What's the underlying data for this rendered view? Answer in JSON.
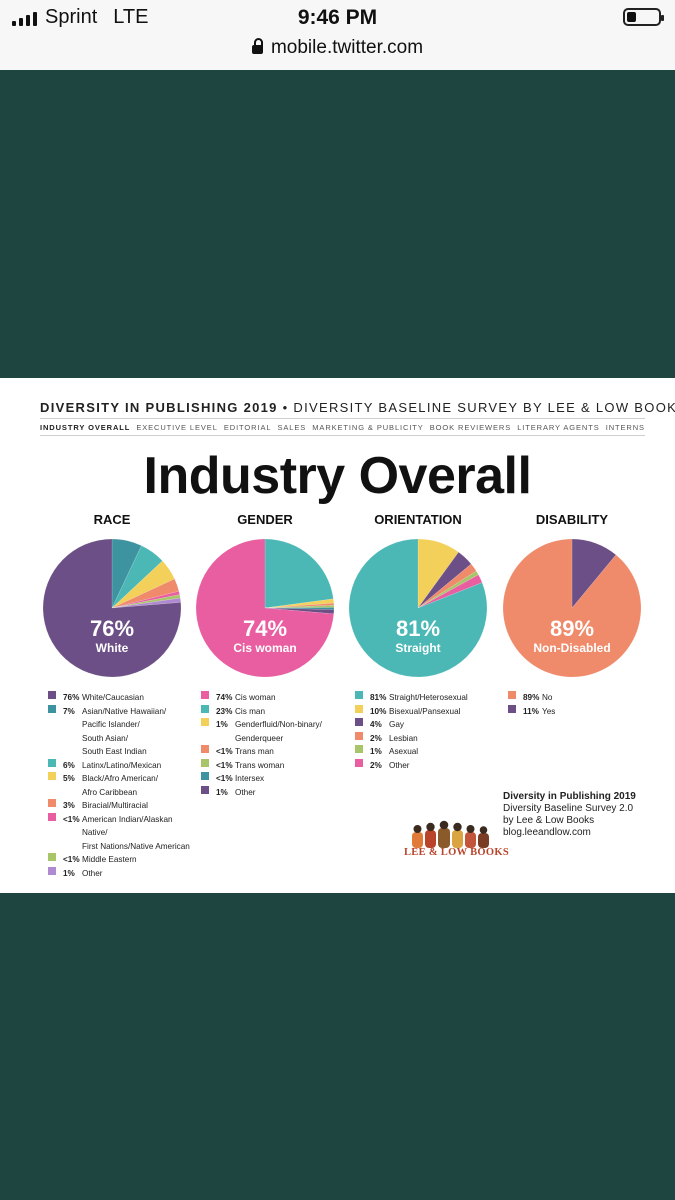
{
  "status_bar": {
    "carrier": "Sprint",
    "network": "LTE",
    "time": "9:46 PM",
    "url": "mobile.twitter.com"
  },
  "colors": {
    "purple": "#6b4f86",
    "teal": "#3d93a0",
    "cyan": "#4bb8b6",
    "yellow": "#f2d05a",
    "orange": "#ef8a6a",
    "pink": "#e85ea1",
    "lime": "#a8c56a",
    "lavender": "#b08ad0",
    "dark_teal": "#1e4540"
  },
  "header": {
    "title_bold": "DIVERSITY IN PUBLISHING 2019",
    "title_rest": "• DIVERSITY BASELINE SURVEY BY LEE & LOW BOOKS",
    "nav": [
      "INDUSTRY OVERALL",
      "EXECUTIVE LEVEL",
      "EDITORIAL",
      "SALES",
      "MARKETING & PUBLICITY",
      "BOOK REVIEWERS",
      "LITERARY AGENTS",
      "INTERNS"
    ]
  },
  "page_title": "Industry Overall",
  "chart_data": [
    {
      "type": "pie",
      "title": "RACE",
      "center_value": "76%",
      "center_label": "White",
      "slices": [
        {
          "pct": "76%",
          "label": "White/Caucasian",
          "value": 76,
          "color": "#6b4f86"
        },
        {
          "pct": "7%",
          "label": "Asian/Native Hawaiian/ Pacific Islander/ South Asian/ South East Indian",
          "value": 7,
          "color": "#3d93a0"
        },
        {
          "pct": "6%",
          "label": "Latinx/Latino/Mexican",
          "value": 6,
          "color": "#4bb8b6"
        },
        {
          "pct": "5%",
          "label": "Black/Afro American/ Afro Caribbean",
          "value": 5,
          "color": "#f2d05a"
        },
        {
          "pct": "3%",
          "label": "Biracial/Multiracial",
          "value": 3,
          "color": "#ef8a6a"
        },
        {
          "pct": "<1%",
          "label": "American Indian/Alaskan Native/ First Nations/Native American",
          "value": 0.8,
          "color": "#e85ea1"
        },
        {
          "pct": "<1%",
          "label": "Middle Eastern",
          "value": 0.8,
          "color": "#a8c56a"
        },
        {
          "pct": "1%",
          "label": "Other",
          "value": 1,
          "color": "#b08ad0"
        }
      ]
    },
    {
      "type": "pie",
      "title": "GENDER",
      "center_value": "74%",
      "center_label": "Cis woman",
      "slices": [
        {
          "pct": "74%",
          "label": "Cis woman",
          "value": 74,
          "color": "#e85ea1"
        },
        {
          "pct": "23%",
          "label": "Cis man",
          "value": 23,
          "color": "#4bb8b6"
        },
        {
          "pct": "1%",
          "label": "Genderfluid/Non-binary/ Genderqueer",
          "value": 1,
          "color": "#f2d05a"
        },
        {
          "pct": "<1%",
          "label": "Trans man",
          "value": 0.5,
          "color": "#ef8a6a"
        },
        {
          "pct": "<1%",
          "label": "Trans woman",
          "value": 0.5,
          "color": "#a8c56a"
        },
        {
          "pct": "<1%",
          "label": "Intersex",
          "value": 0.5,
          "color": "#3d93a0"
        },
        {
          "pct": "1%",
          "label": "Other",
          "value": 1,
          "color": "#6b4f86"
        }
      ]
    },
    {
      "type": "pie",
      "title": "ORIENTATION",
      "center_value": "81%",
      "center_label": "Straight",
      "slices": [
        {
          "pct": "81%",
          "label": "Straight/Heterosexual",
          "value": 81,
          "color": "#4bb8b6"
        },
        {
          "pct": "10%",
          "label": "Bisexual/Pansexual",
          "value": 10,
          "color": "#f2d05a"
        },
        {
          "pct": "4%",
          "label": "Gay",
          "value": 4,
          "color": "#6b4f86"
        },
        {
          "pct": "2%",
          "label": "Lesbian",
          "value": 2,
          "color": "#ef8a6a"
        },
        {
          "pct": "1%",
          "label": "Asexual",
          "value": 1,
          "color": "#a8c56a"
        },
        {
          "pct": "2%",
          "label": "Other",
          "value": 2,
          "color": "#e85ea1"
        }
      ]
    },
    {
      "type": "pie",
      "title": "DISABILITY",
      "center_value": "89%",
      "center_label": "Non-Disabled",
      "slices": [
        {
          "pct": "89%",
          "label": "No",
          "value": 89,
          "color": "#ef8a6a"
        },
        {
          "pct": "11%",
          "label": "Yes",
          "value": 11,
          "color": "#6b4f86"
        }
      ]
    }
  ],
  "credit": {
    "title": "Diversity in Publishing 2019",
    "line1": "Diversity Baseline Survey 2.0",
    "line2": "by Lee & Low Books",
    "line3": "blog.leeandlow.com",
    "logo_text": "LEE & LOW BOOKS"
  }
}
